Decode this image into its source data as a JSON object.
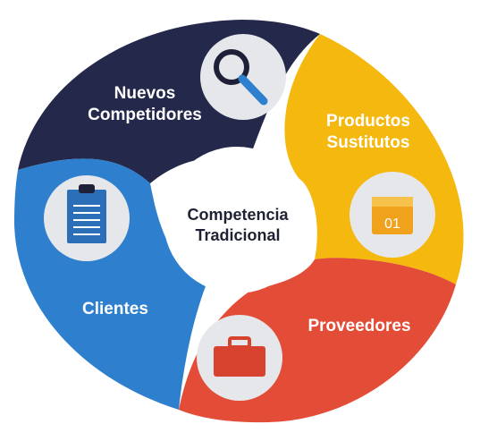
{
  "diagram": {
    "center": {
      "line1": "Competencia",
      "line2": "Tradicional"
    },
    "segments": [
      {
        "id": "nuevos",
        "line1": "Nuevos",
        "line2": "Competidores",
        "icon": "magnifier-icon",
        "color": "#24284a"
      },
      {
        "id": "productos",
        "line1": "Productos",
        "line2": "Sustitutos",
        "icon": "calendar-icon",
        "color": "#f5b80f"
      },
      {
        "id": "proveedores",
        "line1": "Proveedores",
        "icon": "briefcase-icon",
        "color": "#e34d37"
      },
      {
        "id": "clientes",
        "line1": "Clientes",
        "icon": "clipboard-icon",
        "color": "#2e7fce"
      }
    ],
    "calendar_number": "01"
  }
}
